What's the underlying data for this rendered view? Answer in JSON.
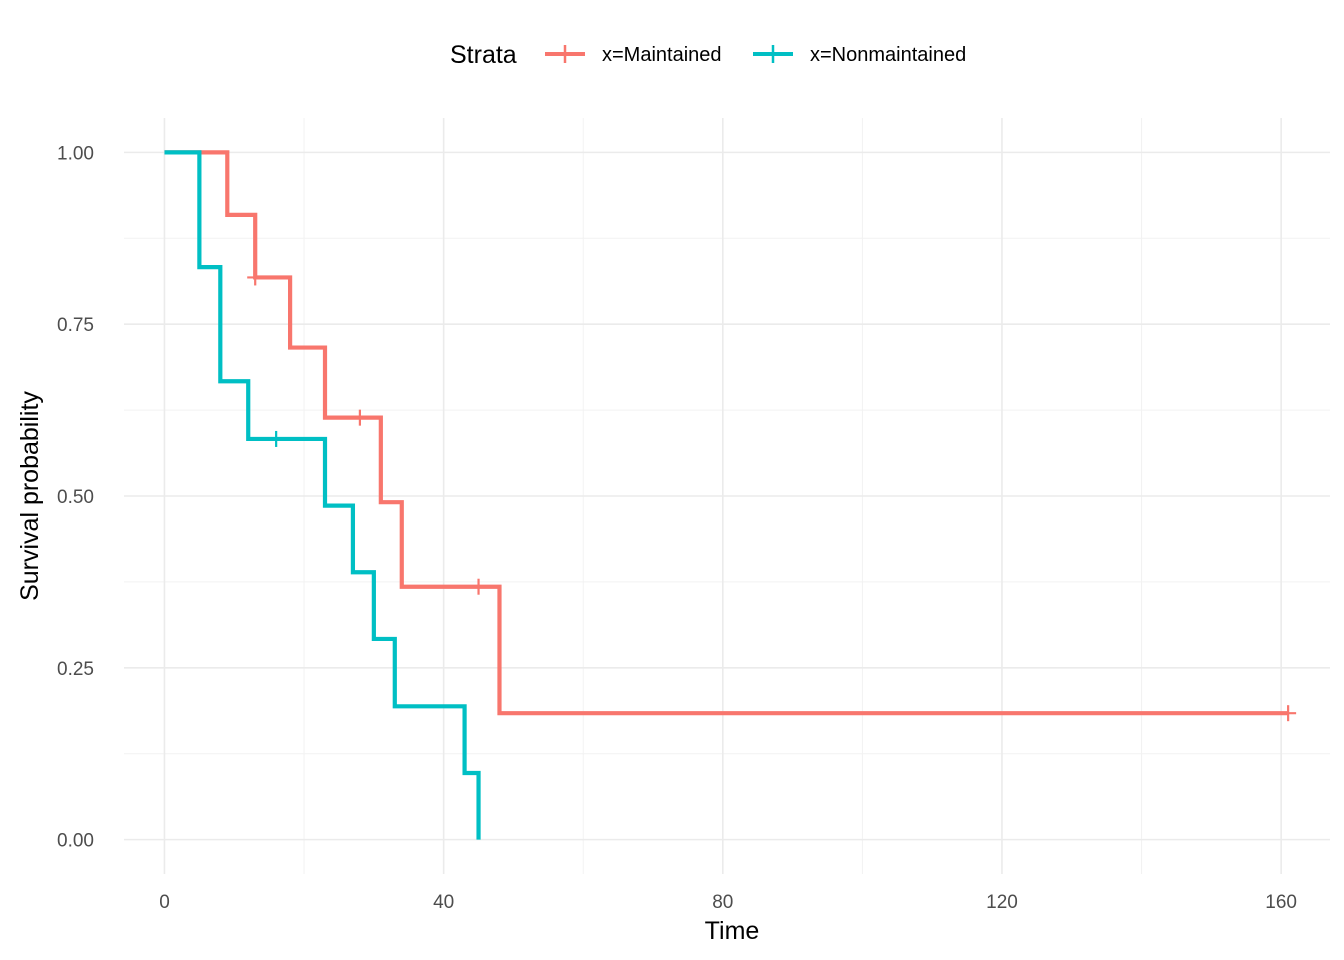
{
  "chart_data": {
    "type": "line",
    "subtype": "survival-step",
    "xlabel": "Time",
    "ylabel": "Survival probability",
    "xlim": [
      -5.8,
      167
    ],
    "ylim": [
      -0.05,
      1.05
    ],
    "x_ticks": [
      0,
      40,
      80,
      120,
      160
    ],
    "x_tick_labels": [
      "0",
      "40",
      "80",
      "120",
      "160"
    ],
    "y_ticks": [
      0,
      0.25,
      0.5,
      0.75,
      1.0
    ],
    "y_tick_labels": [
      "0.00",
      "0.25",
      "0.50",
      "0.75",
      "1.00"
    ],
    "grid": true,
    "legend": {
      "title": "Strata",
      "position": "top"
    },
    "series": [
      {
        "name": "x=Maintained",
        "color": "#F8766D",
        "steps": [
          [
            0,
            1.0
          ],
          [
            9,
            0.909
          ],
          [
            13,
            0.818
          ],
          [
            18,
            0.716
          ],
          [
            23,
            0.614
          ],
          [
            31,
            0.491
          ],
          [
            34,
            0.368
          ],
          [
            48,
            0.184
          ],
          [
            161,
            0.184
          ]
        ],
        "censored": [
          [
            13,
            0.818
          ],
          [
            28,
            0.614
          ],
          [
            45,
            0.368
          ],
          [
            161,
            0.184
          ]
        ]
      },
      {
        "name": "x=Nonmaintained",
        "color": "#00BFC4",
        "steps": [
          [
            0,
            1.0
          ],
          [
            5,
            0.833
          ],
          [
            8,
            0.667
          ],
          [
            12,
            0.583
          ],
          [
            23,
            0.486
          ],
          [
            27,
            0.389
          ],
          [
            30,
            0.292
          ],
          [
            33,
            0.194
          ],
          [
            43,
            0.097
          ],
          [
            45,
            0.0
          ]
        ],
        "censored": [
          [
            16,
            0.583
          ]
        ]
      }
    ]
  }
}
